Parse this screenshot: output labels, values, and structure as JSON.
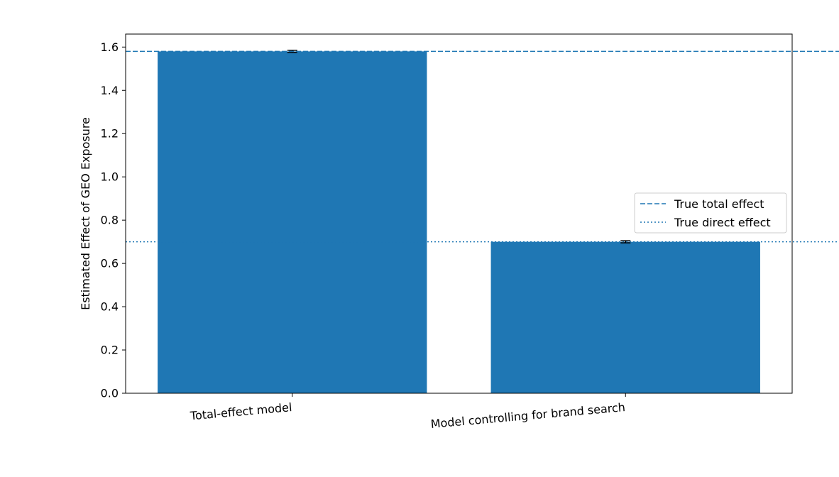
{
  "chart_data": {
    "type": "bar",
    "categories": [
      "Total-effect model",
      "Model controlling for brand search"
    ],
    "values": [
      1.58,
      0.7
    ],
    "errors": [
      0.005,
      0.005
    ],
    "xlabel": "",
    "ylabel": "Estimated Effect of GEO Exposure",
    "ylim": [
      0,
      1.66
    ],
    "yticks": [
      0.0,
      0.2,
      0.4,
      0.6,
      0.8,
      1.0,
      1.2,
      1.4,
      1.6
    ],
    "ytick_labels": [
      "0.0",
      "0.2",
      "0.4",
      "0.6",
      "0.8",
      "1.0",
      "1.2",
      "1.4",
      "1.6"
    ],
    "grid": false,
    "reference_lines": [
      {
        "name": "True total effect",
        "value": 1.58,
        "style": "dashed"
      },
      {
        "name": "True direct effect",
        "value": 0.7,
        "style": "dotted"
      }
    ],
    "legend": {
      "placement": "center-right",
      "entries": [
        "True total effect",
        "True direct effect"
      ]
    },
    "colors": {
      "bar": "#1f77b4",
      "reference_line": "#1f77b4",
      "error_bar": "#000000"
    }
  }
}
